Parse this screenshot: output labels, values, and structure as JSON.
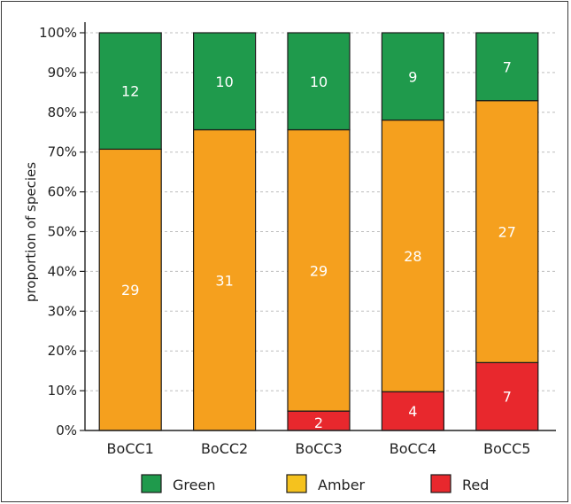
{
  "chart_data": {
    "type": "bar",
    "stacked": true,
    "ylabel": "proportion of species",
    "yticks": [
      "0%",
      "10%",
      "20%",
      "30%",
      "40%",
      "50%",
      "60%",
      "70%",
      "80%",
      "90%",
      "100%"
    ],
    "ylim": [
      0,
      100
    ],
    "categories": [
      "BoCC1",
      "BoCC2",
      "BoCC3",
      "BoCC4",
      "BoCC5"
    ],
    "series": [
      {
        "name": "Red",
        "color": "#e8282d",
        "values": [
          0,
          0,
          2,
          4,
          7
        ]
      },
      {
        "name": "Amber",
        "color": "#f5a01e",
        "values": [
          29,
          31,
          29,
          28,
          27
        ]
      },
      {
        "name": "Green",
        "color": "#1f9a4c",
        "values": [
          12,
          10,
          10,
          9,
          7
        ]
      }
    ],
    "legend": {
      "position": "bottom",
      "items": [
        {
          "label": "Green",
          "color": "#1f9a4c"
        },
        {
          "label": "Amber",
          "color": "#f5c21e"
        },
        {
          "label": "Red",
          "color": "#e8282d"
        }
      ]
    }
  }
}
